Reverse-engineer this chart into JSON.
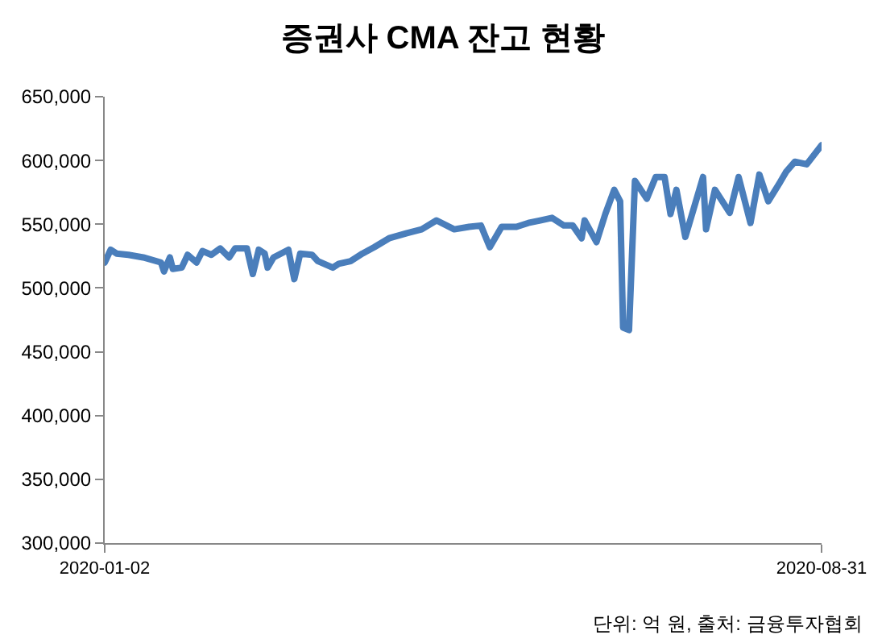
{
  "chart_data": {
    "type": "line",
    "title": "증권사 CMA 잔고 현황",
    "annotations": [
      "단위: 억 원, 출처: 금융투자협회"
    ],
    "x": [
      "2020-01-02",
      "2020-01-04",
      "2020-01-06",
      "2020-01-10",
      "2020-01-15",
      "2020-01-21",
      "2020-01-22",
      "2020-01-24",
      "2020-01-25",
      "2020-01-28",
      "2020-01-30",
      "2020-02-02",
      "2020-02-04",
      "2020-02-07",
      "2020-02-10",
      "2020-02-13",
      "2020-02-15",
      "2020-02-19",
      "2020-02-21",
      "2020-02-23",
      "2020-02-25",
      "2020-02-26",
      "2020-02-28",
      "2020-03-04",
      "2020-03-06",
      "2020-03-08",
      "2020-03-12",
      "2020-03-14",
      "2020-03-19",
      "2020-03-21",
      "2020-03-25",
      "2020-03-29",
      "2020-04-02",
      "2020-04-07",
      "2020-04-13",
      "2020-04-18",
      "2020-04-23",
      "2020-04-29",
      "2020-05-04",
      "2020-05-08",
      "2020-05-11",
      "2020-05-15",
      "2020-05-20",
      "2020-05-24",
      "2020-05-28",
      "2020-06-01",
      "2020-06-05",
      "2020-06-08",
      "2020-06-11",
      "2020-06-12",
      "2020-06-16",
      "2020-06-19",
      "2020-06-22",
      "2020-06-24",
      "2020-06-25",
      "2020-06-27",
      "2020-06-29",
      "2020-07-03",
      "2020-07-06",
      "2020-07-09",
      "2020-07-11",
      "2020-07-13",
      "2020-07-16",
      "2020-07-22",
      "2020-07-23",
      "2020-07-26",
      "2020-07-31",
      "2020-08-03",
      "2020-08-07",
      "2020-08-10",
      "2020-08-13",
      "2020-08-17",
      "2020-08-19",
      "2020-08-22",
      "2020-08-26",
      "2020-08-31"
    ],
    "series": [
      {
        "color": "#4a7ebb",
        "values": [
          520000,
          530000,
          527000,
          526000,
          524000,
          520000,
          513000,
          524000,
          515000,
          516000,
          526000,
          520000,
          529000,
          526000,
          531000,
          524000,
          531000,
          531000,
          511000,
          530000,
          527000,
          516000,
          524000,
          530000,
          507000,
          527000,
          526000,
          521000,
          516000,
          519000,
          521000,
          527000,
          532000,
          539000,
          543000,
          546000,
          553000,
          546000,
          548000,
          549000,
          532000,
          548000,
          548000,
          551000,
          553000,
          555000,
          549000,
          549000,
          539000,
          553000,
          536000,
          558000,
          577000,
          568000,
          469000,
          467000,
          584000,
          570000,
          587000,
          587000,
          558000,
          577000,
          540000,
          587000,
          546000,
          577000,
          559000,
          587000,
          551000,
          589000,
          568000,
          583000,
          591000,
          599000,
          597000,
          612000
        ]
      }
    ],
    "xlim": [
      "2020-01-02",
      "2020-08-31"
    ],
    "xticks": [
      {
        "value": "2020-01-02",
        "label": "2020-01-02"
      },
      {
        "value": "2020-08-31",
        "label": "2020-08-31"
      }
    ],
    "ylim": [
      300000,
      650000
    ],
    "yticks": [
      {
        "value": 300000,
        "label": "300,000"
      },
      {
        "value": 350000,
        "label": "350,000"
      },
      {
        "value": 400000,
        "label": "400,000"
      },
      {
        "value": 450000,
        "label": "450,000"
      },
      {
        "value": 500000,
        "label": "500,000"
      },
      {
        "value": 550000,
        "label": "550,000"
      },
      {
        "value": 600000,
        "label": "600,000"
      },
      {
        "value": 650000,
        "label": "650,000"
      }
    ],
    "grid": false,
    "marker": "none",
    "line_style": "solid"
  }
}
